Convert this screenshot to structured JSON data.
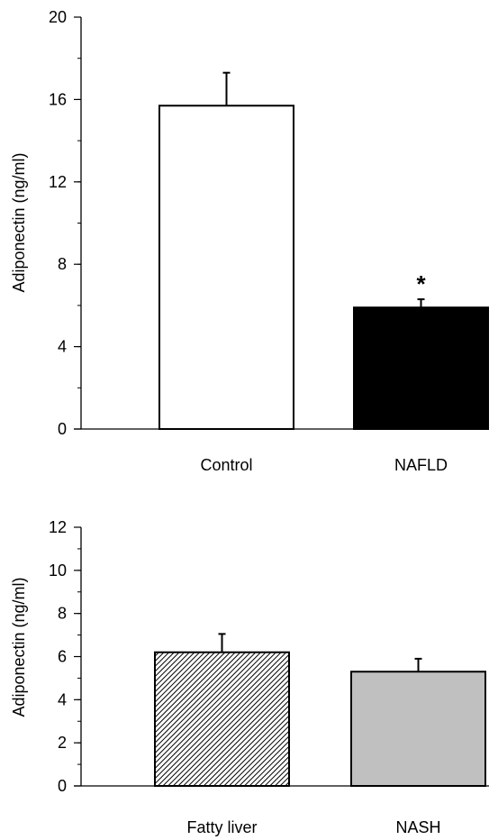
{
  "chart_data": [
    {
      "type": "bar",
      "title": "",
      "xlabel": "",
      "ylabel": "Adiponectin (ng/ml)",
      "categories": [
        "Control",
        "NAFLD"
      ],
      "values": [
        15.7,
        5.9
      ],
      "error_bars": [
        1.6,
        0.4
      ],
      "bar_fills": [
        "#ffffff",
        "#000000"
      ],
      "annotations": [
        "",
        "*"
      ],
      "ylim": [
        0,
        20
      ],
      "y_ticks": [
        0,
        4,
        8,
        12,
        16,
        20
      ],
      "y_tick_labels": [
        "0",
        "4",
        "8",
        "12",
        "16",
        "20"
      ],
      "grid": false
    },
    {
      "type": "bar",
      "title": "",
      "xlabel": "",
      "ylabel": "Adiponectin (ng/ml)",
      "categories": [
        "Fatty liver",
        "NASH"
      ],
      "values": [
        6.2,
        5.3
      ],
      "error_bars": [
        0.85,
        0.6
      ],
      "bar_fills": [
        "hatch",
        "#c0c0c0"
      ],
      "annotations": [
        "",
        ""
      ],
      "ylim": [
        0,
        12
      ],
      "y_ticks": [
        0,
        2,
        4,
        6,
        8,
        10,
        12
      ],
      "y_tick_labels": [
        "0",
        "2",
        "4",
        "6",
        "8",
        "10",
        "12"
      ],
      "grid": false
    }
  ]
}
